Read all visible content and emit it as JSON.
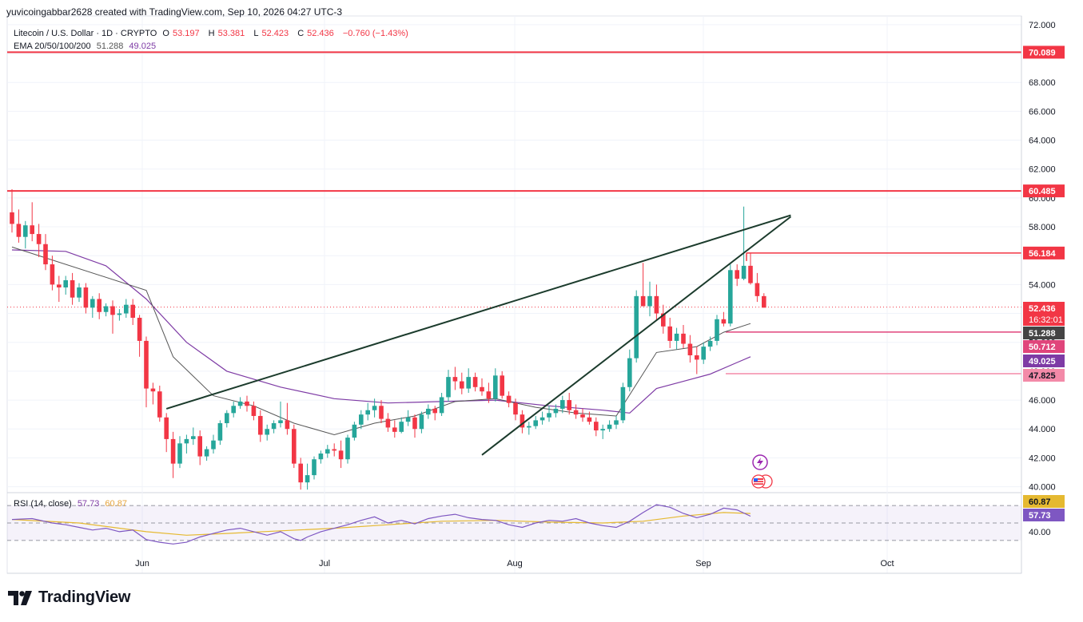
{
  "header": {
    "credit": "yuvicoingabbar2628 created with TradingView.com, Sep 10, 2026 04:27 UTC-3"
  },
  "legend": {
    "symbol": "Litecoin / U.S. Dollar · 1D · CRYPTO",
    "o_label": "O",
    "o": "53.197",
    "h_label": "H",
    "h": "53.381",
    "l_label": "L",
    "l": "52.423",
    "c_label": "C",
    "c": "52.436",
    "change": "−0.760 (−1.43%)",
    "ema_label": "EMA 20/50/100/200",
    "ema_v1": "51.288",
    "ema_v2": "49.025",
    "rsi_label": "RSI (14, close)",
    "rsi_v1": "57.73",
    "rsi_v2": "60.87"
  },
  "brand": {
    "name": "TradingView"
  },
  "colors": {
    "up": "#26a69a",
    "down": "#f23645",
    "ema_fast": "#555555",
    "ema_slow": "#7e3ba5",
    "level": "#f23645",
    "trend": "#1b3b2c",
    "rsi": "#7e57c2",
    "rsi_ma": "#e5b931",
    "magenta": "#e0457b"
  },
  "chart_data": [
    {
      "type": "candlestick",
      "symbol": "Litecoin / U.S. Dollar",
      "timeframe": "1D",
      "x_ticks": [
        "Jun",
        "Jul",
        "Aug",
        "Sep",
        "Oct"
      ],
      "y_ticks": [
        "40.000",
        "42.000",
        "44.000",
        "46.000",
        "48.000",
        "50.000",
        "52.000",
        "54.000",
        "56.000",
        "58.000",
        "60.000",
        "62.000",
        "64.000",
        "66.000",
        "68.000",
        "70.000",
        "72.000"
      ],
      "ylim": [
        39.7,
        72.6
      ],
      "candles": [
        [
          59.0,
          60.6,
          57.6,
          58.2
        ],
        [
          58.2,
          59.2,
          56.9,
          57.3
        ],
        [
          57.3,
          58.4,
          56.5,
          58.1
        ],
        [
          58.1,
          59.7,
          57.0,
          57.5
        ],
        [
          57.5,
          58.2,
          55.9,
          56.8
        ],
        [
          56.8,
          57.5,
          55.0,
          55.4
        ],
        [
          55.4,
          56.0,
          53.6,
          54.0
        ],
        [
          54.0,
          54.6,
          52.8,
          53.8
        ],
        [
          53.8,
          54.6,
          53.3,
          54.3
        ],
        [
          54.3,
          54.8,
          52.6,
          53.1
        ],
        [
          53.1,
          54.1,
          52.8,
          53.8
        ],
        [
          53.8,
          54.1,
          52.0,
          52.4
        ],
        [
          52.4,
          53.2,
          51.7,
          53.0
        ],
        [
          53.0,
          53.4,
          51.6,
          52.1
        ],
        [
          52.1,
          52.7,
          51.8,
          52.5
        ],
        [
          52.5,
          52.9,
          50.6,
          51.9
        ],
        [
          51.9,
          52.3,
          51.5,
          52.0
        ],
        [
          52.0,
          53.0,
          51.7,
          52.6
        ],
        [
          52.6,
          53.0,
          51.2,
          51.7
        ],
        [
          51.7,
          51.9,
          49.0,
          50.1
        ],
        [
          50.1,
          50.4,
          45.5,
          46.8
        ],
        [
          46.8,
          47.2,
          45.7,
          46.6
        ],
        [
          46.6,
          47.0,
          44.5,
          44.8
        ],
        [
          44.8,
          45.1,
          42.4,
          43.3
        ],
        [
          43.3,
          43.8,
          40.6,
          41.6
        ],
        [
          41.6,
          43.5,
          41.3,
          43.0
        ],
        [
          43.0,
          43.6,
          42.3,
          43.3
        ],
        [
          43.3,
          44.1,
          42.9,
          43.5
        ],
        [
          43.5,
          43.9,
          41.5,
          42.1
        ],
        [
          42.1,
          42.8,
          41.8,
          42.6
        ],
        [
          42.6,
          43.6,
          42.3,
          43.2
        ],
        [
          43.2,
          44.6,
          42.9,
          44.4
        ],
        [
          44.4,
          45.3,
          44.1,
          45.1
        ],
        [
          45.1,
          45.9,
          44.8,
          45.6
        ],
        [
          45.6,
          46.2,
          45.4,
          45.9
        ],
        [
          45.9,
          46.3,
          45.2,
          45.6
        ],
        [
          45.6,
          45.9,
          44.6,
          44.9
        ],
        [
          44.9,
          45.3,
          43.1,
          43.6
        ],
        [
          43.6,
          44.3,
          43.2,
          44.0
        ],
        [
          44.0,
          44.6,
          43.7,
          44.4
        ],
        [
          44.4,
          45.9,
          44.1,
          44.6
        ],
        [
          44.6,
          45.8,
          43.6,
          44.0
        ],
        [
          44.0,
          44.3,
          41.3,
          41.6
        ],
        [
          41.6,
          42.0,
          39.8,
          40.3
        ],
        [
          40.3,
          41.6,
          39.8,
          40.8
        ],
        [
          40.8,
          42.1,
          40.5,
          41.9
        ],
        [
          41.9,
          42.5,
          41.6,
          42.3
        ],
        [
          42.3,
          42.9,
          42.0,
          42.6
        ],
        [
          42.6,
          43.0,
          42.1,
          42.5
        ],
        [
          42.5,
          43.2,
          41.3,
          41.9
        ],
        [
          41.9,
          43.6,
          41.6,
          43.4
        ],
        [
          43.4,
          44.5,
          43.2,
          44.3
        ],
        [
          44.3,
          45.3,
          44.0,
          45.0
        ],
        [
          45.0,
          45.8,
          44.6,
          45.3
        ],
        [
          45.3,
          46.1,
          44.8,
          45.6
        ],
        [
          45.6,
          46.0,
          44.4,
          44.7
        ],
        [
          44.7,
          45.1,
          43.8,
          44.1
        ],
        [
          44.1,
          44.6,
          43.4,
          43.8
        ],
        [
          43.8,
          44.8,
          43.7,
          44.5
        ],
        [
          44.5,
          45.3,
          44.2,
          44.8
        ],
        [
          44.8,
          45.0,
          43.4,
          44.0
        ],
        [
          44.0,
          45.2,
          43.7,
          45.0
        ],
        [
          45.0,
          45.7,
          44.7,
          45.4
        ],
        [
          45.4,
          45.6,
          44.6,
          45.1
        ],
        [
          45.1,
          46.5,
          44.9,
          46.2
        ],
        [
          46.2,
          48.1,
          45.9,
          47.6
        ],
        [
          47.6,
          48.3,
          46.7,
          47.3
        ],
        [
          47.3,
          47.9,
          46.4,
          46.8
        ],
        [
          46.8,
          48.2,
          46.5,
          47.6
        ],
        [
          47.6,
          47.9,
          46.6,
          46.9
        ],
        [
          46.9,
          47.5,
          46.3,
          46.6
        ],
        [
          46.6,
          47.2,
          45.8,
          46.1
        ],
        [
          46.1,
          48.2,
          45.9,
          47.7
        ],
        [
          47.7,
          48.0,
          46.1,
          46.3
        ],
        [
          46.3,
          46.6,
          45.5,
          45.8
        ],
        [
          45.8,
          46.1,
          44.6,
          45.0
        ],
        [
          45.0,
          45.3,
          43.7,
          44.1
        ],
        [
          44.1,
          44.5,
          43.6,
          44.2
        ],
        [
          44.2,
          44.9,
          44.0,
          44.6
        ],
        [
          44.6,
          45.2,
          44.3,
          44.8
        ],
        [
          44.8,
          45.6,
          44.5,
          45.1
        ],
        [
          45.1,
          45.7,
          44.8,
          45.4
        ],
        [
          45.4,
          46.3,
          45.1,
          46.0
        ],
        [
          46.0,
          46.5,
          45.0,
          45.3
        ],
        [
          45.3,
          45.7,
          44.7,
          45.0
        ],
        [
          45.0,
          45.4,
          44.5,
          44.8
        ],
        [
          44.8,
          45.2,
          44.3,
          44.5
        ],
        [
          44.5,
          44.8,
          43.5,
          43.9
        ],
        [
          43.9,
          44.3,
          43.3,
          44.0
        ],
        [
          44.0,
          44.6,
          43.8,
          44.3
        ],
        [
          44.3,
          44.9,
          44.0,
          44.6
        ],
        [
          44.6,
          47.2,
          44.4,
          46.9
        ],
        [
          46.9,
          49.5,
          46.6,
          48.9
        ],
        [
          48.9,
          53.6,
          48.6,
          53.2
        ],
        [
          53.2,
          55.5,
          52.5,
          52.5
        ],
        [
          52.5,
          54.2,
          51.8,
          53.2
        ],
        [
          53.2,
          54.0,
          51.5,
          52.0
        ],
        [
          52.0,
          52.6,
          50.6,
          51.1
        ],
        [
          51.1,
          51.7,
          49.6,
          50.1
        ],
        [
          50.1,
          51.0,
          49.5,
          50.6
        ],
        [
          50.6,
          51.2,
          49.6,
          49.9
        ],
        [
          49.9,
          50.5,
          48.6,
          49.1
        ],
        [
          49.1,
          49.7,
          47.8,
          48.8
        ],
        [
          48.8,
          50.0,
          48.5,
          49.7
        ],
        [
          49.7,
          50.4,
          49.4,
          50.1
        ],
        [
          50.1,
          51.9,
          49.8,
          51.6
        ],
        [
          51.6,
          52.1,
          51.1,
          51.3
        ],
        [
          51.3,
          55.4,
          51.1,
          55.0
        ],
        [
          55.0,
          55.4,
          53.9,
          54.4
        ],
        [
          54.4,
          59.4,
          54.3,
          55.3
        ],
        [
          55.3,
          56.2,
          54.0,
          54.1
        ],
        [
          54.1,
          54.8,
          52.8,
          53.2
        ],
        [
          53.2,
          53.4,
          52.4,
          52.4
        ]
      ],
      "price_levels": [
        {
          "label": "70.089",
          "value": 70.089,
          "color": "#f23645"
        },
        {
          "label": "60.485",
          "value": 60.485,
          "color": "#f23645"
        },
        {
          "label": "56.184",
          "value": 56.184,
          "color": "#f23645"
        },
        {
          "label": "52.436",
          "value": 52.436,
          "color": "#f23645"
        },
        {
          "label": "51.288",
          "value": 51.288,
          "color": "#444444"
        },
        {
          "label": "50.712",
          "value": 50.712,
          "color": "#e0457b"
        },
        {
          "label": "49.025",
          "value": 49.025,
          "color": "#7e3ba5"
        },
        {
          "label": "47.825",
          "value": 47.825,
          "color": "#f38aa8"
        }
      ],
      "countdown": "16:32:01",
      "ema_fast": [
        [
          0,
          56.6
        ],
        [
          20,
          53.6
        ],
        [
          24,
          49.0
        ],
        [
          30,
          46.3
        ],
        [
          36,
          45.6
        ],
        [
          42,
          44.4
        ],
        [
          48,
          43.6
        ],
        [
          54,
          44.4
        ],
        [
          60,
          44.9
        ],
        [
          66,
          45.9
        ],
        [
          72,
          46.1
        ],
        [
          78,
          45.5
        ],
        [
          84,
          45.1
        ],
        [
          90,
          44.9
        ],
        [
          96,
          49.3
        ],
        [
          102,
          49.7
        ],
        [
          106,
          50.7
        ],
        [
          110,
          51.3
        ]
      ],
      "ema_slow": [
        [
          0,
          56.4
        ],
        [
          8,
          56.3
        ],
        [
          14,
          55.3
        ],
        [
          20,
          53.0
        ],
        [
          26,
          50.0
        ],
        [
          32,
          48.0
        ],
        [
          40,
          46.9
        ],
        [
          48,
          46.1
        ],
        [
          56,
          45.8
        ],
        [
          64,
          45.9
        ],
        [
          72,
          46.0
        ],
        [
          80,
          45.6
        ],
        [
          88,
          45.3
        ],
        [
          92,
          45.1
        ],
        [
          96,
          46.8
        ],
        [
          100,
          47.3
        ],
        [
          104,
          47.8
        ],
        [
          108,
          48.6
        ],
        [
          110,
          49.0
        ]
      ],
      "trendlines": [
        {
          "from": [
            23,
            45.4
          ],
          "to": [
            116,
            58.8
          ]
        },
        {
          "from": [
            70,
            42.2
          ],
          "to": [
            116,
            58.7
          ]
        }
      ]
    },
    {
      "type": "line",
      "indicator": "RSI (14, close)",
      "y_ticks": [
        "40.00"
      ],
      "guides": [
        70,
        50,
        30
      ],
      "ylim": [
        18,
        82
      ],
      "current": [
        {
          "label": "60.87",
          "value": 60.87,
          "color": "#e5b931"
        },
        {
          "label": "57.73",
          "value": 57.73,
          "color": "#7e57c2"
        }
      ],
      "rsi": [
        [
          0,
          54
        ],
        [
          3,
          55
        ],
        [
          6,
          50
        ],
        [
          8,
          48
        ],
        [
          10,
          45
        ],
        [
          12,
          42
        ],
        [
          14,
          44
        ],
        [
          16,
          40
        ],
        [
          18,
          42
        ],
        [
          20,
          31
        ],
        [
          22,
          28
        ],
        [
          24,
          26
        ],
        [
          26,
          28
        ],
        [
          28,
          34
        ],
        [
          30,
          38
        ],
        [
          32,
          42
        ],
        [
          34,
          44
        ],
        [
          36,
          40
        ],
        [
          38,
          36
        ],
        [
          40,
          40
        ],
        [
          42,
          32
        ],
        [
          43,
          30
        ],
        [
          44,
          34
        ],
        [
          46,
          40
        ],
        [
          48,
          44
        ],
        [
          50,
          48
        ],
        [
          52,
          53
        ],
        [
          54,
          57
        ],
        [
          56,
          50
        ],
        [
          58,
          53
        ],
        [
          60,
          49
        ],
        [
          62,
          55
        ],
        [
          64,
          58
        ],
        [
          66,
          60
        ],
        [
          68,
          56
        ],
        [
          70,
          54
        ],
        [
          72,
          53
        ],
        [
          74,
          48
        ],
        [
          76,
          45
        ],
        [
          78,
          50
        ],
        [
          80,
          53
        ],
        [
          82,
          52
        ],
        [
          84,
          55
        ],
        [
          86,
          50
        ],
        [
          88,
          47
        ],
        [
          90,
          45
        ],
        [
          92,
          52
        ],
        [
          94,
          62
        ],
        [
          96,
          71
        ],
        [
          98,
          68
        ],
        [
          100,
          61
        ],
        [
          102,
          56
        ],
        [
          104,
          60
        ],
        [
          106,
          67
        ],
        [
          108,
          65
        ],
        [
          110,
          57.73
        ]
      ],
      "rsi_ma": [
        [
          0,
          54
        ],
        [
          10,
          50
        ],
        [
          20,
          40
        ],
        [
          26,
          36
        ],
        [
          32,
          38
        ],
        [
          40,
          41
        ],
        [
          48,
          44
        ],
        [
          56,
          48
        ],
        [
          64,
          52
        ],
        [
          72,
          53
        ],
        [
          80,
          51
        ],
        [
          88,
          50
        ],
        [
          94,
          52
        ],
        [
          100,
          58
        ],
        [
          106,
          62
        ],
        [
          110,
          60.87
        ]
      ]
    }
  ]
}
